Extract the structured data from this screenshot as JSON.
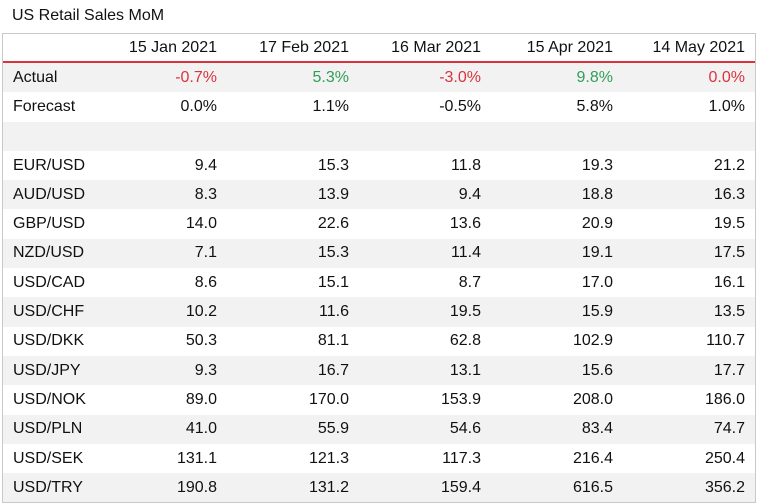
{
  "title": "US Retail Sales MoM",
  "colors": {
    "negative": "#d9333f",
    "positive": "#2f9e58",
    "accent_line": "#d9333f",
    "row_shade": "#f2f2f2"
  },
  "columns": [
    "",
    "15 Jan 2021",
    "17 Feb 2021",
    "16 Mar 2021",
    "15 Apr 2021",
    "14 May 2021"
  ],
  "actual": {
    "label": "Actual",
    "values": [
      "-0.7%",
      "5.3%",
      "-3.0%",
      "9.8%",
      "0.0%"
    ]
  },
  "forecast": {
    "label": "Forecast",
    "values": [
      "0.0%",
      "1.1%",
      "-0.5%",
      "5.8%",
      "1.0%"
    ]
  },
  "rows": [
    {
      "label": "EUR/USD",
      "values": [
        "9.4",
        "15.3",
        "11.8",
        "19.3",
        "21.2"
      ]
    },
    {
      "label": "AUD/USD",
      "values": [
        "8.3",
        "13.9",
        "9.4",
        "18.8",
        "16.3"
      ]
    },
    {
      "label": "GBP/USD",
      "values": [
        "14.0",
        "22.6",
        "13.6",
        "20.9",
        "19.5"
      ]
    },
    {
      "label": "NZD/USD",
      "values": [
        "7.1",
        "15.3",
        "11.4",
        "19.1",
        "17.5"
      ]
    },
    {
      "label": "USD/CAD",
      "values": [
        "8.6",
        "15.1",
        "8.7",
        "17.0",
        "16.1"
      ]
    },
    {
      "label": "USD/CHF",
      "values": [
        "10.2",
        "11.6",
        "19.5",
        "15.9",
        "13.5"
      ]
    },
    {
      "label": "USD/DKK",
      "values": [
        "50.3",
        "81.1",
        "62.8",
        "102.9",
        "110.7"
      ]
    },
    {
      "label": "USD/JPY",
      "values": [
        "9.3",
        "16.7",
        "13.1",
        "15.6",
        "17.7"
      ]
    },
    {
      "label": "USD/NOK",
      "values": [
        "89.0",
        "170.0",
        "153.9",
        "208.0",
        "186.0"
      ]
    },
    {
      "label": "USD/PLN",
      "values": [
        "41.0",
        "55.9",
        "54.6",
        "83.4",
        "74.7"
      ]
    },
    {
      "label": "USD/SEK",
      "values": [
        "131.1",
        "121.3",
        "117.3",
        "216.4",
        "250.4"
      ]
    },
    {
      "label": "USD/TRY",
      "values": [
        "190.8",
        "131.2",
        "159.4",
        "616.5",
        "356.2"
      ]
    }
  ]
}
